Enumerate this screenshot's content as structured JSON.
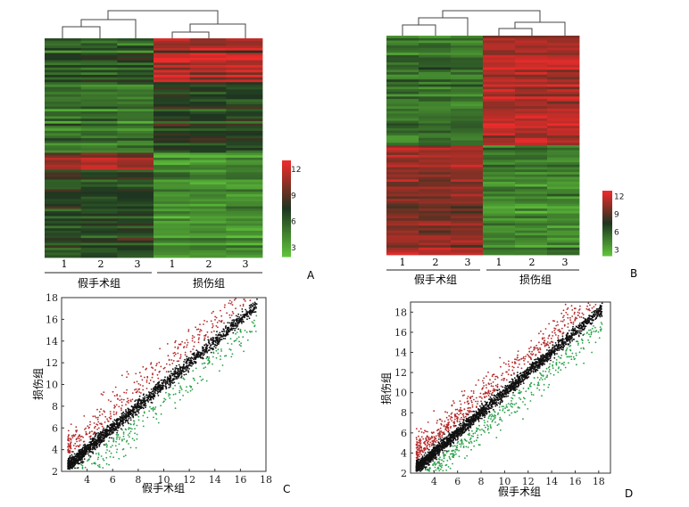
{
  "colors": {
    "low": "#5fc23a",
    "mid": "#1e3520",
    "high": "#ee2b2b",
    "up_points": "#b52a2a",
    "down_points": "#2aa14a",
    "ns_points": "#111111"
  },
  "chart_data": [
    {
      "panel": "A",
      "type": "heatmap",
      "columns": [
        "1",
        "2",
        "3",
        "1",
        "2",
        "3"
      ],
      "groups": [
        {
          "label": "假手术组",
          "columns": [
            0,
            1,
            2
          ]
        },
        {
          "label": "损伤组",
          "columns": [
            3,
            4,
            5
          ]
        }
      ],
      "colorbar": {
        "ticks": [
          "12",
          "9",
          "6",
          "3"
        ],
        "range": [
          2,
          13
        ]
      },
      "dendrogram": "top"
    },
    {
      "panel": "B",
      "type": "heatmap",
      "columns": [
        "1",
        "2",
        "3",
        "1",
        "2",
        "3"
      ],
      "groups": [
        {
          "label": "假手术组",
          "columns": [
            0,
            1,
            2
          ]
        },
        {
          "label": "损伤组",
          "columns": [
            3,
            4,
            5
          ]
        }
      ],
      "colorbar": {
        "ticks": [
          "12",
          "9",
          "6",
          "3"
        ],
        "range": [
          2,
          13
        ]
      },
      "dendrogram": "top"
    },
    {
      "panel": "C",
      "type": "scatter",
      "xlabel": "假手术组",
      "ylabel": "损伤组",
      "xlim": [
        2,
        18
      ],
      "ylim": [
        2,
        18
      ],
      "xticks": [
        "4",
        "6",
        "8",
        "10",
        "12",
        "14",
        "16",
        "18"
      ],
      "yticks": [
        "2",
        "4",
        "6",
        "8",
        "10",
        "12",
        "14",
        "16",
        "18"
      ],
      "point_groups": [
        "up",
        "unchanged",
        "down"
      ]
    },
    {
      "panel": "D",
      "type": "scatter",
      "xlabel": "假手术组",
      "ylabel": "损伤组",
      "xlim": [
        2,
        19
      ],
      "ylim": [
        2,
        19
      ],
      "xticks": [
        "4",
        "6",
        "8",
        "10",
        "12",
        "14",
        "16",
        "18"
      ],
      "yticks": [
        "2",
        "4",
        "6",
        "8",
        "10",
        "12",
        "14",
        "16",
        "18"
      ],
      "point_groups": [
        "up",
        "unchanged",
        "down"
      ]
    }
  ]
}
